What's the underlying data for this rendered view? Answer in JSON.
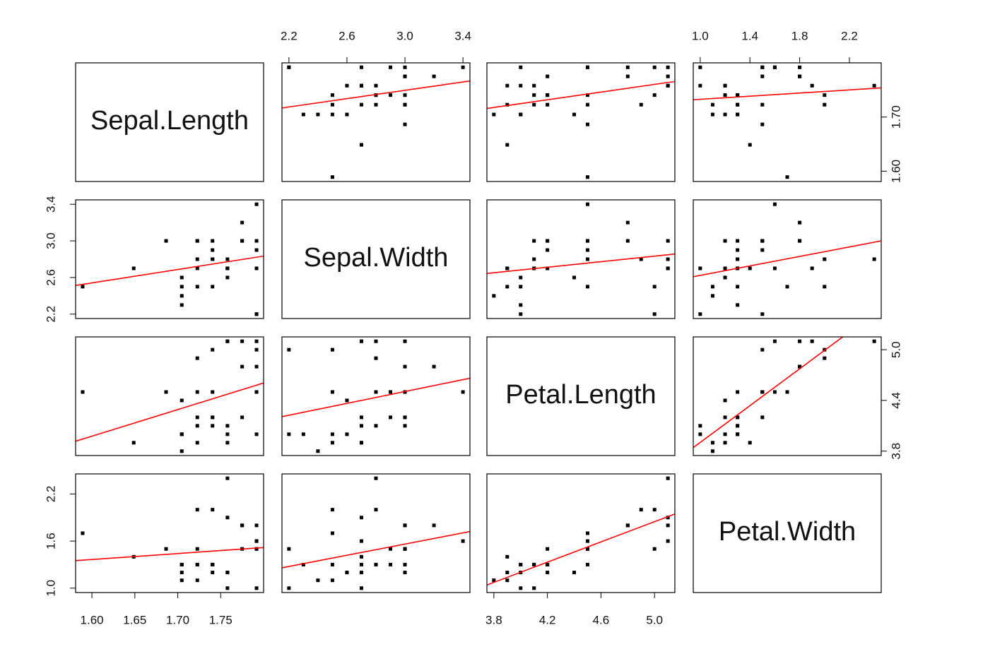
{
  "chart_data": {
    "type": "scatter-matrix",
    "point_color": "#000000",
    "line_color": "#ff0000",
    "variables": [
      {
        "name": "Sepal.Length",
        "values": [
          1.5892,
          1.6487,
          1.6864,
          1.7047,
          1.7047,
          1.7047,
          1.7047,
          1.7228,
          1.7228,
          1.7228,
          1.7228,
          1.7228,
          1.7405,
          1.7405,
          1.7405,
          1.7405,
          1.7405,
          1.7579,
          1.7579,
          1.7579,
          1.7579,
          1.7579,
          1.775,
          1.775,
          1.775,
          1.7918,
          1.7918,
          1.7918,
          1.7918,
          1.7918,
          1.7918
        ],
        "lim": [
          1.581,
          1.8
        ],
        "xticks": [
          {
            "value": 1.6,
            "label": "1.60"
          },
          1.65,
          {
            "value": 1.7,
            "label": "1.70"
          },
          1.75
        ],
        "yticks": [
          {
            "value": 1.6,
            "label": "1.60"
          },
          {
            "value": 1.7,
            "label": "1.70"
          }
        ]
      },
      {
        "name": "Sepal.Width",
        "values": [
          2.5,
          2.7,
          3.0,
          2.3,
          2.4,
          2.5,
          2.6,
          3.0,
          3.0,
          2.5,
          2.7,
          2.8,
          2.8,
          3.0,
          2.9,
          2.8,
          2.5,
          2.7,
          2.7,
          2.6,
          2.7,
          2.8,
          3.0,
          3.2,
          3.0,
          2.2,
          2.9,
          3.4,
          2.7,
          2.2,
          3.0
        ],
        "lim": [
          2.152,
          3.448
        ],
        "xticks": [
          2.2,
          2.6,
          {
            "value": 3,
            "label": "3.0"
          },
          3.4
        ],
        "yticks": [
          2.2,
          2.6,
          {
            "value": 3,
            "label": "3.0"
          },
          3.4
        ]
      },
      {
        "name": "Petal.Length",
        "values": [
          4.5,
          3.9,
          4.5,
          4.0,
          3.8,
          4.0,
          4.4,
          4.5,
          4.1,
          3.9,
          4.2,
          4.9,
          4.5,
          4.2,
          4.2,
          4.1,
          5.0,
          4.1,
          3.9,
          4.0,
          5.1,
          5.1,
          4.2,
          4.8,
          5.1,
          4.0,
          4.5,
          4.5,
          5.1,
          5.0,
          4.8
        ],
        "lim": [
          3.748,
          5.152
        ],
        "xticks": [
          3.8,
          4.2,
          4.6,
          {
            "value": 5,
            "label": "5.0"
          }
        ],
        "yticks": [
          3.8,
          4.4,
          {
            "value": 5,
            "label": "5.0"
          }
        ]
      },
      {
        "name": "Petal.Width",
        "values": [
          1.7,
          1.4,
          1.5,
          1.3,
          1.1,
          1.3,
          1.2,
          1.5,
          1.3,
          1.1,
          1.3,
          2.0,
          1.3,
          1.2,
          1.3,
          1.3,
          2.0,
          1.0,
          1.2,
          1.2,
          1.9,
          2.4,
          1.5,
          1.8,
          1.8,
          1.0,
          1.5,
          1.6,
          1.6,
          1.5,
          1.8
        ],
        "lim": [
          0.944,
          2.456
        ],
        "xticks": [
          {
            "value": 1,
            "label": "1.0"
          },
          1.4,
          1.8,
          2.2
        ],
        "yticks": [
          {
            "value": 1,
            "label": "1.0"
          },
          1.6,
          2.2
        ]
      }
    ]
  }
}
